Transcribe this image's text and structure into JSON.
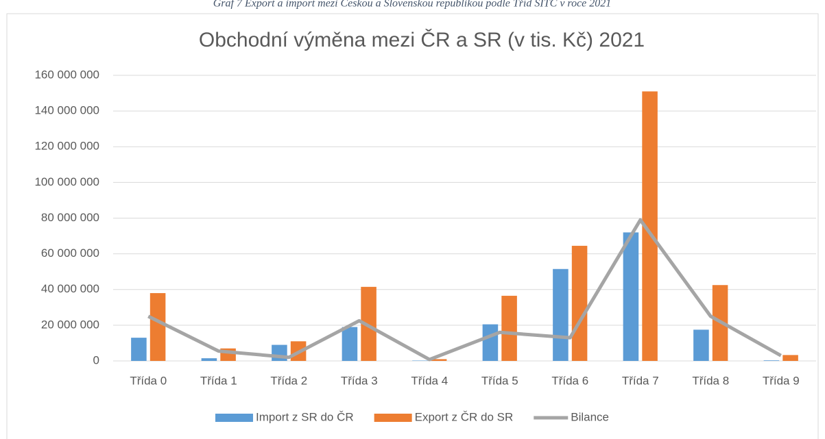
{
  "caption": "Graf 7 Export a import mezi Českou a Slovenskou republikou podle Tříd SITC v roce 2021",
  "chart_data": {
    "type": "bar",
    "title": "Obchodní výměna mezi ČR a SR (v tis. Kč) 2021",
    "categories": [
      "Třída 0",
      "Třída 1",
      "Třída 2",
      "Třída 3",
      "Třída 4",
      "Třída 5",
      "Třída 6",
      "Třída 7",
      "Třída 8",
      "Třída 9"
    ],
    "series": [
      {
        "name": "Import z SR do ČR",
        "color": "#5b9bd5",
        "kind": "bar",
        "values": [
          13000000,
          1500000,
          9000000,
          19000000,
          200000,
          20500000,
          51500000,
          72000000,
          17500000,
          300000
        ]
      },
      {
        "name": "Export z ČR do SR",
        "color": "#ed7d31",
        "kind": "bar",
        "values": [
          38000000,
          7000000,
          11000000,
          41500000,
          1000000,
          36500000,
          64500000,
          151000000,
          42500000,
          3300000
        ]
      },
      {
        "name": "Bilance",
        "color": "#a5a5a5",
        "kind": "line",
        "values": [
          25000000,
          5500000,
          2000000,
          22500000,
          800000,
          16000000,
          13000000,
          79000000,
          25000000,
          3000000
        ]
      }
    ],
    "ylim": [
      0,
      160000000
    ],
    "yticks": [
      0,
      {
        "value": 20000000,
        "label": "20 000 000"
      },
      {
        "value": 40000000,
        "label": "40 000 000"
      },
      {
        "value": 60000000,
        "label": "60 000 000"
      },
      {
        "value": 80000000,
        "label": "80 000 000"
      },
      {
        "value": 100000000,
        "label": "100 000 000"
      },
      {
        "value": 120000000,
        "label": "120 000 000"
      },
      {
        "value": 140000000,
        "label": "140 000 000"
      },
      {
        "value": 160000000,
        "label": "160 000 000"
      }
    ],
    "grid": true,
    "legend": "bottom"
  }
}
